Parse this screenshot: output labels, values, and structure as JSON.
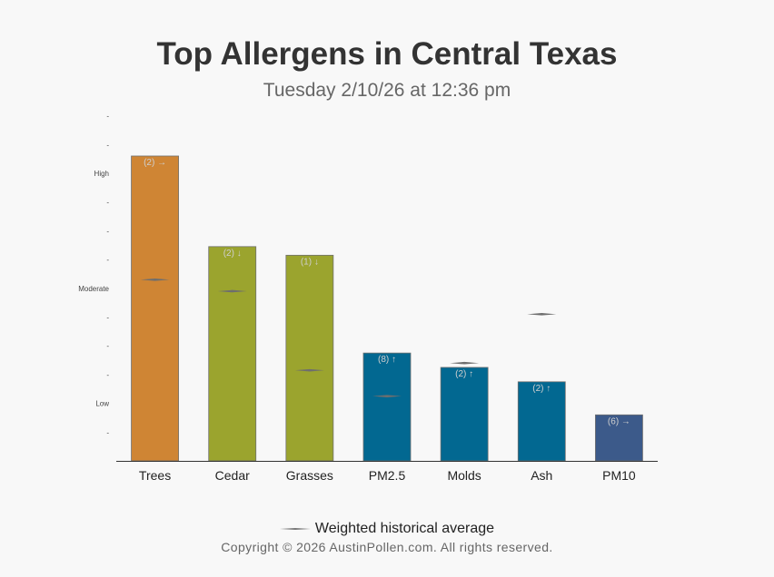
{
  "title": "Top Allergens in Central Texas",
  "subtitle": "Tuesday 2/10/26 at 12:36 pm",
  "legend_label": "Weighted historical average",
  "copyright": "Copyright © 2026 AustinPollen.com.  All rights reserved.",
  "chart_data": {
    "type": "bar",
    "categories": [
      "Trees",
      "Cedar",
      "Grasses",
      "PM2.5",
      "Molds",
      "Ash",
      "PM10"
    ],
    "values": [
      10.6,
      7.45,
      7.15,
      3.75,
      3.25,
      2.75,
      1.6
    ],
    "historical_average": [
      6.3,
      5.9,
      3.15,
      2.25,
      3.4,
      5.1,
      null
    ],
    "bar_labels": [
      "(2) →",
      "(2) ↓",
      "(1) ↓",
      "(8) ↑",
      "(2) ↑",
      "(2) ↑",
      "(6) →"
    ],
    "colors": [
      "#cf8534",
      "#9ba42e",
      "#9ba42e",
      "#026891",
      "#026891",
      "#026891",
      "#3c5a8a"
    ],
    "y_ticks": [
      {
        "value": 1,
        "label": "-"
      },
      {
        "value": 2,
        "label": "Low"
      },
      {
        "value": 3,
        "label": "-"
      },
      {
        "value": 4,
        "label": "-"
      },
      {
        "value": 5,
        "label": "-"
      },
      {
        "value": 6,
        "label": "Moderate"
      },
      {
        "value": 7,
        "label": "-"
      },
      {
        "value": 8,
        "label": "-"
      },
      {
        "value": 9,
        "label": "-"
      },
      {
        "value": 10,
        "label": "High"
      },
      {
        "value": 11,
        "label": "-"
      },
      {
        "value": 12,
        "label": "-"
      }
    ],
    "ylim": [
      0,
      12
    ],
    "grid": false,
    "legend_position": "bottom"
  }
}
